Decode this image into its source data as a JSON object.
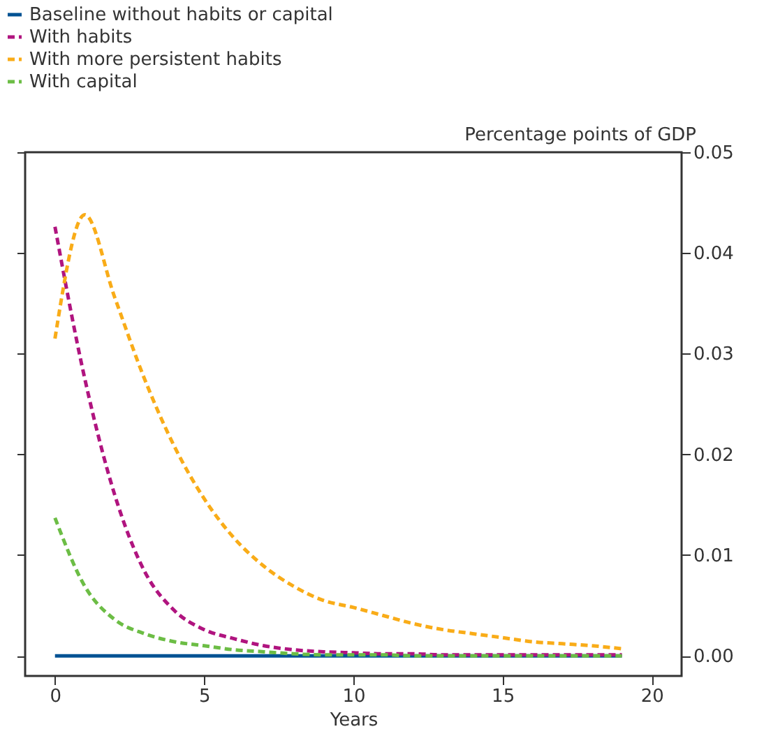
{
  "chart_data": {
    "type": "line",
    "xlabel": "Years",
    "ylabel": "Percentage points of GDP",
    "x": [
      0,
      1,
      2,
      3,
      4,
      5,
      6,
      7,
      8,
      9,
      10,
      11,
      12,
      13,
      14,
      15,
      16,
      17,
      18,
      19
    ],
    "series": [
      {
        "name": "Baseline without habits or capital",
        "color": "#005293",
        "line_style": "solid",
        "values": [
          0,
          0,
          0,
          0,
          0,
          0,
          0,
          0,
          0,
          0,
          0,
          0,
          0,
          0,
          0,
          0,
          0,
          0,
          0,
          0
        ]
      },
      {
        "name": "With habits",
        "color": "#b0147f",
        "line_style": "dashed",
        "values": [
          0.0426,
          0.0275,
          0.016,
          0.0084,
          0.0045,
          0.0026,
          0.0017,
          0.001,
          0.0006,
          0.0004,
          0.0003,
          0.0002,
          0.0002,
          0.0001,
          0.0001,
          0.0001,
          0.0001,
          0.0001,
          0.0001,
          0.0001
        ]
      },
      {
        "name": "With more persistent habits",
        "color": "#f9ac18",
        "line_style": "dashed",
        "values": [
          0.0315,
          0.0438,
          0.0356,
          0.0275,
          0.0208,
          0.0156,
          0.0117,
          0.0089,
          0.0069,
          0.0055,
          0.0048,
          0.004,
          0.0032,
          0.0026,
          0.0022,
          0.0018,
          0.0014,
          0.0012,
          0.001,
          0.0007
        ]
      },
      {
        "name": "With capital",
        "color": "#6cbd45",
        "line_style": "dashed",
        "values": [
          0.0137,
          0.0069,
          0.0036,
          0.0022,
          0.0014,
          0.001,
          0.0006,
          0.0004,
          0.0002,
          0.0001,
          0.0001,
          0.0001,
          0,
          0,
          0,
          0,
          0,
          0,
          0,
          0
        ]
      }
    ],
    "xlim": [
      -1,
      21
    ],
    "xticks": [
      0,
      5,
      10,
      15,
      20
    ],
    "ylim": [
      -0.002,
      0.05
    ],
    "yticks": [
      {
        "value": 0,
        "label": "0.00"
      },
      {
        "value": 0.01,
        "label": "0.01"
      },
      {
        "value": 0.02,
        "label": "0.02"
      },
      {
        "value": 0.03,
        "label": "0.03"
      },
      {
        "value": 0.04,
        "label": "0.04"
      },
      {
        "value": 0.05,
        "label": "0.05"
      }
    ],
    "grid": false,
    "legend": "top left",
    "marker": "none"
  }
}
